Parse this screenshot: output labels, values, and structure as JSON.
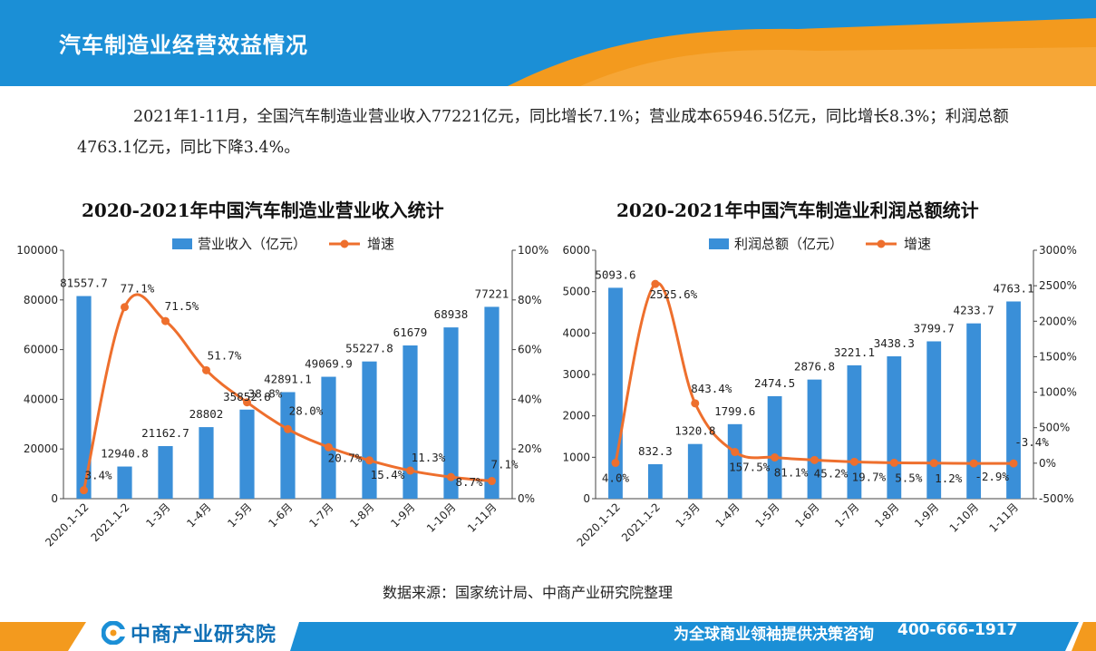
{
  "header": {
    "title": "汽车制造业经营效益情况",
    "colors": {
      "primary": "#1b8fd6",
      "accent": "#f39a1e"
    }
  },
  "summary": {
    "text": "2021年1-11月，全国汽车制造业营业收入77221亿元，同比增长7.1%；营业成本65946.5亿元，同比增长8.3%；利润总额4763.1亿元，同比下降3.4%。"
  },
  "chart_data": [
    {
      "type": "bar",
      "title": "2020-2021年中国汽车制造业营业收入统计",
      "categories": [
        "2020.1-12",
        "2021.1-2",
        "1-3月",
        "1-4月",
        "1-5月",
        "1-6月",
        "1-7月",
        "1-8月",
        "1-9月",
        "1-10月",
        "1-11月"
      ],
      "series": [
        {
          "name": "营业收入（亿元）",
          "type": "bar",
          "axis": "left",
          "color": "#3a8fd8",
          "values": [
            81557.7,
            12940.8,
            21162.7,
            28802,
            35852.8,
            42891.1,
            49069.9,
            55227.8,
            61679,
            68938,
            77221
          ],
          "labels": [
            "81557.7",
            "12940.8",
            "21162.7",
            "28802",
            "35852.8",
            "42891.1",
            "49069.9",
            "55227.8",
            "61679",
            "68938",
            "77221"
          ]
        },
        {
          "name": "增速",
          "type": "line",
          "axis": "right",
          "color": "#ee6f2d",
          "values": [
            3.4,
            77.1,
            71.5,
            51.7,
            38.8,
            28.0,
            20.7,
            15.4,
            11.3,
            8.7,
            7.1
          ],
          "labels": [
            "3.4%",
            "77.1%",
            "71.5%",
            "51.7%",
            "38.8%",
            "28.0%",
            "20.7%",
            "15.4%",
            "11.3%",
            "8.7%",
            "7.1%"
          ]
        }
      ],
      "y_left": {
        "range": [
          0,
          100000
        ],
        "ticks": [
          "0",
          "20000",
          "40000",
          "60000",
          "80000",
          "100000"
        ]
      },
      "y_right": {
        "range": [
          0,
          100
        ],
        "ticks": [
          "0%",
          "20%",
          "40%",
          "60%",
          "80%",
          "100%"
        ]
      },
      "legend_placement": "top",
      "grid": false
    },
    {
      "type": "bar",
      "title": "2020-2021年中国汽车制造业利润总额统计",
      "categories": [
        "2020.1-12",
        "2021.1-2",
        "1-3月",
        "1-4月",
        "1-5月",
        "1-6月",
        "1-7月",
        "1-8月",
        "1-9月",
        "1-10月",
        "1-11月"
      ],
      "series": [
        {
          "name": "利润总额（亿元）",
          "type": "bar",
          "axis": "left",
          "color": "#3a8fd8",
          "values": [
            5093.6,
            832.3,
            1320.8,
            1799.6,
            2474.5,
            2876.8,
            3221.1,
            3438.3,
            3799.7,
            4233.7,
            4763.1
          ],
          "labels": [
            "5093.6",
            "832.3",
            "1320.8",
            "1799.6",
            "2474.5",
            "2876.8",
            "3221.1",
            "3438.3",
            "3799.7",
            "4233.7",
            "4763.1"
          ]
        },
        {
          "name": "增速",
          "type": "line",
          "axis": "right",
          "color": "#ee6f2d",
          "values": [
            4.0,
            2525.6,
            843.4,
            157.5,
            81.1,
            45.2,
            19.7,
            5.5,
            1.2,
            -2.9,
            -3.4
          ],
          "labels": [
            "4.0%",
            "2525.6%",
            "843.4%",
            "157.5%",
            "81.1%",
            "45.2%",
            "19.7%",
            "5.5%",
            "1.2%",
            "-2.9%",
            "-3.4%"
          ]
        }
      ],
      "y_left": {
        "range": [
          0,
          6000
        ],
        "ticks": [
          "0",
          "1000",
          "2000",
          "3000",
          "4000",
          "5000",
          "6000"
        ]
      },
      "y_right": {
        "range": [
          -500,
          3000
        ],
        "ticks": [
          "-500%",
          "0%",
          "500%",
          "1000%",
          "1500%",
          "2000%",
          "2500%",
          "3000%"
        ]
      },
      "legend_placement": "top",
      "grid": false
    }
  ],
  "source": "数据来源：国家统计局、中商产业研究院整理",
  "footer": {
    "logo_text": "中商产业研究院",
    "slogan": "为全球商业领袖提供决策咨询",
    "phone": "400-666-1917",
    "colors": {
      "primary": "#1b8fd6",
      "accent": "#f39a1e"
    }
  }
}
